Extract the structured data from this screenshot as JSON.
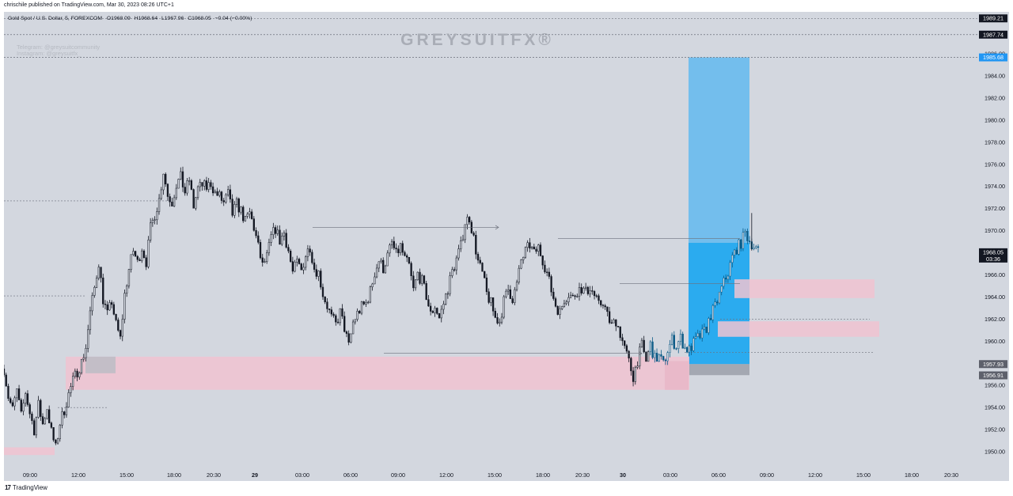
{
  "published_line": "chrischile published on TradingView.com, Mar 30, 2023 08:26 UTC+1",
  "footer_brand": "TradingView",
  "footer_icon": "tradingview-logo-icon",
  "legend": {
    "symbol": "Gold Spot / U.S. Dollar, 5, FOREXCOM",
    "open": "O1968.09",
    "high": "H1968.64",
    "low": "L1967.96",
    "close": "C1968.05",
    "change": "−0.04 (−0.00%)"
  },
  "watermark": {
    "brand": "GREYSUITFX®",
    "telegram": "Telegram: @greysuitcommunity",
    "instagram": "Instagram: @greysuitfx_"
  },
  "colors": {
    "plot_bg": "#d3d7df",
    "axis_bg": "#d3d7df",
    "candle": "#131722",
    "target_zone": "#5bb8f0",
    "target_zone_active": "#1ea8ee",
    "stop_zone": "#9ea3ad",
    "demand_zone": "#f0c3d1",
    "watermark": "#a9adb6",
    "tag_blue": "#2196f3",
    "tag_dark": "#131722",
    "tag_grey": "#5d606b"
  },
  "price_tags": {
    "top": "1989.21",
    "level_1987": "1987.74",
    "target": "1985.68",
    "current_price": "1968.05",
    "countdown": "03:36",
    "entry": "1957.93",
    "stop": "1956.91"
  },
  "chart_data": {
    "type": "candlestick",
    "instrument": "Gold Spot / U.S. Dollar",
    "timeframe_minutes": 5,
    "price_axis": {
      "min": 1948.5,
      "max": 1989.8,
      "ticks": [
        1950,
        1952,
        1954,
        1956,
        1960,
        1962,
        1964,
        1966,
        1970,
        1972,
        1974,
        1976,
        1978,
        1980,
        1982,
        1984,
        1986
      ],
      "tick_labels": [
        "1950.00",
        "1952.00",
        "1954.00",
        "1956.00",
        "1960.00",
        "1962.00",
        "1964.00",
        "1966.00",
        "1970.00",
        "1972.00",
        "1974.00",
        "1976.00",
        "1978.00",
        "1980.00",
        "1982.00",
        "1984.00",
        "1986.00"
      ]
    },
    "time_axis": {
      "labels": [
        "09:00",
        "12:00",
        "15:00",
        "18:00",
        "20:30",
        "29",
        "03:00",
        "06:00",
        "09:00",
        "12:00",
        "15:00",
        "18:00",
        "20:30",
        "30",
        "03:00",
        "06:00",
        "09:00",
        "12:00",
        "15:00",
        "18:00",
        "20:30"
      ],
      "bold_labels": [
        "29",
        "30"
      ]
    },
    "close_path": [
      [
        0,
        1957.5
      ],
      [
        2,
        1955
      ],
      [
        4,
        1953.8
      ],
      [
        6,
        1955.5
      ],
      [
        8,
        1953.2
      ],
      [
        10,
        1955.4
      ],
      [
        12,
        1953.5
      ],
      [
        14,
        1952
      ],
      [
        16,
        1954.2
      ],
      [
        18,
        1952.5
      ],
      [
        20,
        1954
      ],
      [
        22,
        1951.8
      ],
      [
        24,
        1950.3
      ],
      [
        26,
        1952.6
      ],
      [
        28,
        1953.8
      ],
      [
        30,
        1955.2
      ],
      [
        32,
        1956.4
      ],
      [
        34,
        1957.3
      ],
      [
        36,
        1958.1
      ],
      [
        38,
        1959.5
      ],
      [
        40,
        1962.6
      ],
      [
        42,
        1964.8
      ],
      [
        44,
        1967.2
      ],
      [
        46,
        1963.8
      ],
      [
        48,
        1962.4
      ],
      [
        50,
        1963.6
      ],
      [
        52,
        1961.5
      ],
      [
        54,
        1960.2
      ],
      [
        56,
        1964.2
      ],
      [
        58,
        1966.5
      ],
      [
        60,
        1968.2
      ],
      [
        62,
        1967.1
      ],
      [
        64,
        1968.5
      ],
      [
        66,
        1967.2
      ],
      [
        68,
        1970.2
      ],
      [
        70,
        1971.5
      ],
      [
        72,
        1972.8
      ],
      [
        74,
        1975.4
      ],
      [
        76,
        1973.2
      ],
      [
        78,
        1972.6
      ],
      [
        80,
        1974.2
      ],
      [
        82,
        1974.8
      ],
      [
        84,
        1973.5
      ],
      [
        86,
        1974.6
      ],
      [
        88,
        1972.2
      ],
      [
        90,
        1973.8
      ],
      [
        92,
        1974.1
      ],
      [
        94,
        1973.9
      ],
      [
        96,
        1974.3
      ],
      [
        98,
        1973.4
      ],
      [
        100,
        1973.1
      ],
      [
        102,
        1972.5
      ],
      [
        104,
        1973.3
      ],
      [
        106,
        1971.5
      ],
      [
        108,
        1972.4
      ],
      [
        110,
        1971.8
      ],
      [
        112,
        1970.8
      ],
      [
        114,
        1971.6
      ],
      [
        116,
        1970.3
      ],
      [
        118,
        1968.5
      ],
      [
        120,
        1966.8
      ],
      [
        122,
        1967.6
      ],
      [
        124,
        1969.4
      ],
      [
        126,
        1970.2
      ],
      [
        128,
        1969.1
      ],
      [
        130,
        1969.8
      ],
      [
        132,
        1968.2
      ],
      [
        134,
        1966.2
      ],
      [
        136,
        1967.1
      ],
      [
        138,
        1966.4
      ],
      [
        140,
        1967.8
      ],
      [
        142,
        1968.6
      ],
      [
        144,
        1966.6
      ],
      [
        146,
        1966.2
      ],
      [
        148,
        1964.3
      ],
      [
        150,
        1963.2
      ],
      [
        152,
        1962.1
      ],
      [
        154,
        1961.5
      ],
      [
        156,
        1962.6
      ],
      [
        158,
        1961.2
      ],
      [
        160,
        1959.5
      ],
      [
        162,
        1961.7
      ],
      [
        164,
        1962.5
      ],
      [
        166,
        1963.1
      ],
      [
        168,
        1963.4
      ],
      [
        170,
        1964.5
      ],
      [
        172,
        1966.2
      ],
      [
        174,
        1967.3
      ],
      [
        176,
        1966.6
      ],
      [
        178,
        1967.7
      ],
      [
        180,
        1968.9
      ],
      [
        182,
        1967.8
      ],
      [
        184,
        1968.6
      ],
      [
        186,
        1967.4
      ],
      [
        188,
        1966.8
      ],
      [
        190,
        1964.6
      ],
      [
        192,
        1966.1
      ],
      [
        194,
        1965.4
      ],
      [
        196,
        1964.1
      ],
      [
        198,
        1962.4
      ],
      [
        200,
        1963.2
      ],
      [
        202,
        1962.1
      ],
      [
        204,
        1963.4
      ],
      [
        206,
        1964.8
      ],
      [
        208,
        1966.3
      ],
      [
        210,
        1967.4
      ],
      [
        212,
        1968.6
      ],
      [
        214,
        1970.8
      ],
      [
        216,
        1971.2
      ],
      [
        218,
        1969.3
      ],
      [
        220,
        1967.2
      ],
      [
        222,
        1966.1
      ],
      [
        224,
        1964.3
      ],
      [
        226,
        1963.4
      ],
      [
        228,
        1962.1
      ],
      [
        230,
        1961.8
      ],
      [
        232,
        1963.6
      ],
      [
        234,
        1964.7
      ],
      [
        236,
        1963.9
      ],
      [
        238,
        1965.1
      ],
      [
        240,
        1967.3
      ],
      [
        242,
        1968.1
      ],
      [
        244,
        1968.7
      ],
      [
        246,
        1967.9
      ],
      [
        248,
        1968.5
      ],
      [
        250,
        1967.4
      ],
      [
        252,
        1966.2
      ],
      [
        254,
        1964.6
      ],
      [
        256,
        1963.3
      ],
      [
        258,
        1962.6
      ],
      [
        260,
        1963.8
      ],
      [
        262,
        1964.3
      ],
      [
        264,
        1963.9
      ],
      [
        266,
        1964.6
      ],
      [
        268,
        1964.8
      ],
      [
        270,
        1964.4
      ],
      [
        272,
        1964.9
      ],
      [
        274,
        1964.1
      ],
      [
        276,
        1963.2
      ],
      [
        278,
        1963.6
      ],
      [
        280,
        1962.3
      ],
      [
        282,
        1961.4
      ],
      [
        284,
        1961.9
      ],
      [
        286,
        1960.7
      ],
      [
        288,
        1959.3
      ],
      [
        290,
        1958.1
      ],
      [
        292,
        1956.8
      ],
      [
        294,
        1958.3
      ],
      [
        296,
        1959.6
      ],
      [
        298,
        1958.2
      ],
      [
        300,
        1959.7
      ],
      [
        302,
        1958.4
      ],
      [
        304,
        1958.6
      ],
      [
        306,
        1957.9
      ],
      [
        308,
        1959.2
      ],
      [
        310,
        1960.1
      ],
      [
        312,
        1959.6
      ],
      [
        314,
        1960.3
      ],
      [
        316,
        1959.4
      ],
      [
        318,
        1959.2
      ],
      [
        320,
        1959.8
      ],
      [
        322,
        1960.3
      ],
      [
        324,
        1960.6
      ],
      [
        326,
        1961.2
      ],
      [
        328,
        1962.4
      ],
      [
        330,
        1963.1
      ],
      [
        332,
        1964.2
      ],
      [
        334,
        1965.3
      ],
      [
        336,
        1966.2
      ],
      [
        338,
        1967.6
      ],
      [
        340,
        1968.4
      ],
      [
        342,
        1968.9
      ],
      [
        344,
        1969.8
      ],
      [
        346,
        1969.1
      ],
      [
        348,
        1968.6
      ],
      [
        350,
        1968.05
      ]
    ],
    "range_start": "2023-03-28 07:50",
    "bar_step_minutes": 5,
    "reference_levels": [
      1989.21,
      1987.74,
      1985.68
    ],
    "annotations": {
      "long_position": {
        "entry": 1957.93,
        "target": 1985.68,
        "stop": 1956.91,
        "filled_to": 1968.9
      },
      "demand_zones": [
        {
          "from": 1955.6,
          "to": 1958.6
        },
        {
          "from": 1963.9,
          "to": 1965.6
        },
        {
          "from": 1960.4,
          "to": 1961.8
        },
        {
          "from": 1949.7,
          "to": 1950.4
        }
      ],
      "arrows": [
        {
          "price": 1970.3,
          "label": ""
        },
        {
          "price": 1958.9,
          "label": ""
        }
      ]
    }
  }
}
